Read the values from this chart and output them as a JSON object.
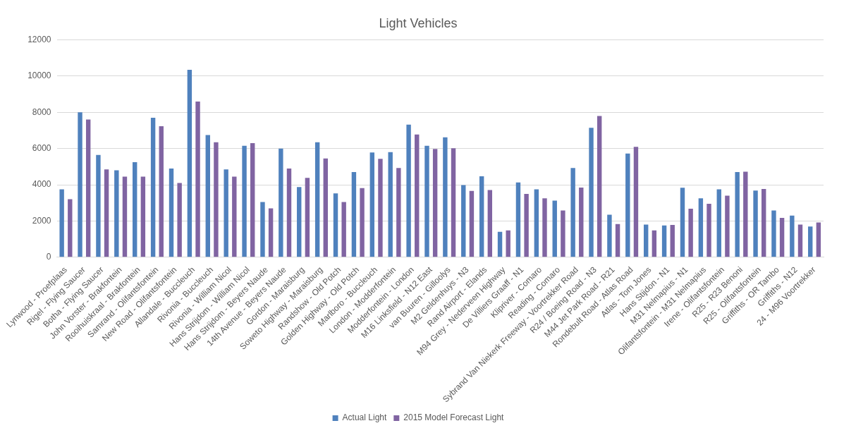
{
  "chart_data": {
    "type": "bar",
    "title": "Light Vehicles",
    "categories": [
      "Lynwood - Proefplaas",
      "Rigel - Flying Saucer",
      "Botha - Flying Saucer",
      "John Vorster - Brakfontein",
      "Rooihuiskraal - Brakfontein",
      "Samrand - Olifantsfontein",
      "New Road - Olifantsfontein",
      "Allandale - Buccleuch",
      "Rivonia - Buccleuch",
      "Rivonia - William Nicol",
      "Hans Strijdom - William Nicol",
      "Hans Strijdom - Beyers Naude",
      "14th Avenue - Beyers Naude",
      "Gordon - Maraisburg",
      "Soweto Highway - Maraisburg",
      "Randshow - Old Potch",
      "Golden Highway - Old Potch",
      "Marlboro - Buccleuch",
      "London - Modderfontein",
      "Modderfontein - London",
      "M16 Linksfield - N12 East",
      "van Buuren - Gilloolys",
      "M2 Geldenhuys - N3",
      "Rand Airport - Elands",
      "M94 Grey - Nederveen Highway",
      "De Villiers Graaff - N1",
      "Klipriver - Comaro",
      "Reading - Comaro",
      "Sybrand Van Niekerk Freeway - Voortrekker Road",
      "R24 / Boeing Road - N3",
      "M44 Jet Park Road - R21",
      "Rondebult Road - Atlas Road",
      "Atlas - Tom Jones",
      "Hans Stijdon - N1",
      "M31 Nelmapius - N1",
      "Olifantsfontein - M31 Nelmapius",
      "Irene - Olifantsfontein",
      "R25 - R23 Benoni",
      "R25 - Olifantsfontein",
      "Griffiths - OR Tambo",
      "Griffiths - N12",
      "24 - M96 Voortrekker"
    ],
    "series": [
      {
        "name": "Actual Light",
        "color": "#4f81bd",
        "values": [
          3750,
          8000,
          5650,
          4800,
          5250,
          7700,
          4900,
          10350,
          6750,
          4850,
          6150,
          3050,
          6000,
          3880,
          6350,
          3530,
          4700,
          5780,
          5800,
          7320,
          6150,
          6620,
          3980,
          4470,
          1400,
          4130,
          3750,
          3130,
          4930,
          7150,
          2350,
          5730,
          1800,
          1750,
          3840,
          3250,
          3750,
          4700,
          3680,
          2580,
          2300,
          1700
        ]
      },
      {
        "name": "2015 Model Forecast Light",
        "color": "#8064a2",
        "values": [
          3200,
          7600,
          4850,
          4450,
          4450,
          7230,
          4100,
          8600,
          6350,
          4450,
          6300,
          2700,
          4900,
          4380,
          5450,
          3050,
          3820,
          5430,
          4930,
          6780,
          5980,
          6020,
          3660,
          3710,
          1480,
          3500,
          3250,
          2580,
          3850,
          7800,
          1830,
          6100,
          1480,
          1780,
          2680,
          2950,
          3400,
          4720,
          3770,
          2170,
          1800,
          1920
        ]
      }
    ],
    "ylim": [
      0,
      12000
    ],
    "yticks": [
      0,
      2000,
      4000,
      6000,
      8000,
      10000,
      12000
    ],
    "grid": "y",
    "legend": "bottom"
  }
}
